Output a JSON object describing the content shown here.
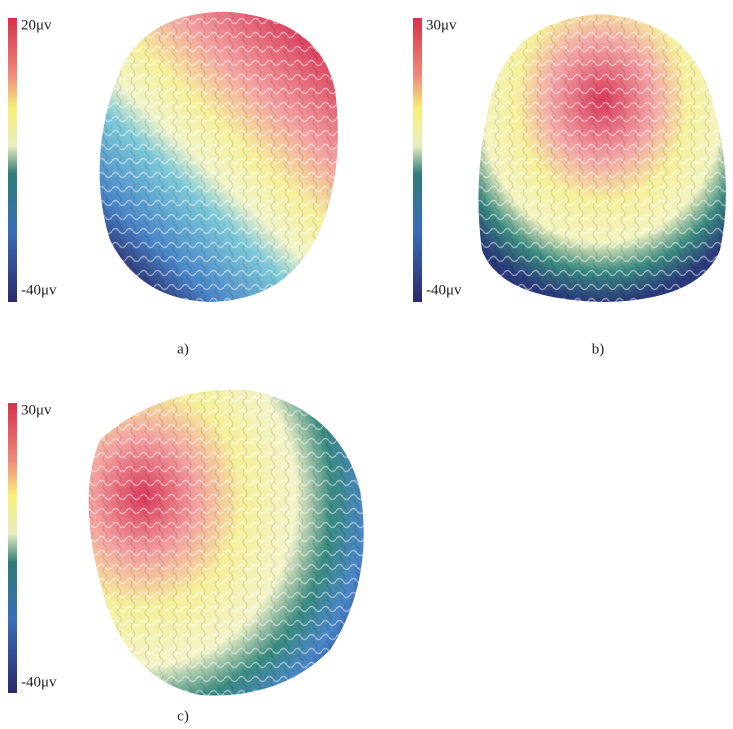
{
  "panels": [
    {
      "caption": "a)",
      "colorbar": {
        "max_label": "20μv",
        "min_label": "-40μv"
      }
    },
    {
      "caption": "b)",
      "colorbar": {
        "max_label": "30μv",
        "min_label": "-40μv"
      }
    },
    {
      "caption": "c)",
      "colorbar": {
        "max_label": "30μv",
        "min_label": "-40μv"
      }
    }
  ]
}
